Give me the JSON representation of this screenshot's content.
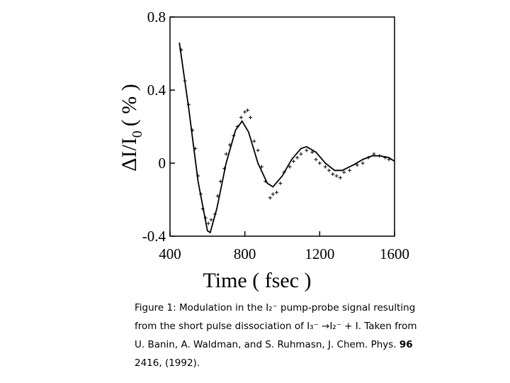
{
  "chart_data": {
    "type": "line",
    "x_label": "Time ( fsec )",
    "y_label": {
      "main": "ΔI/I",
      "sub": "0",
      "unit": "( % )"
    },
    "xlim": [
      400,
      1600
    ],
    "xticks": [
      400,
      800,
      1200,
      1600
    ],
    "ylim": [
      -0.4,
      0.8
    ],
    "yticks": [
      -0.4,
      0,
      0.4,
      0.8
    ],
    "series": [
      {
        "style": "line",
        "color": "#000000",
        "x": [
          450,
          500,
          550,
          600,
          615,
          650,
          700,
          750,
          785,
          820,
          870,
          920,
          950,
          1000,
          1050,
          1100,
          1130,
          1180,
          1230,
          1280,
          1320,
          1380,
          1430,
          1480,
          1520,
          1570,
          1600
        ],
        "values": [
          0.66,
          0.3,
          -0.1,
          -0.37,
          -0.38,
          -0.25,
          0.0,
          0.18,
          0.23,
          0.17,
          0.0,
          -0.11,
          -0.13,
          -0.07,
          0.02,
          0.08,
          0.09,
          0.06,
          0.0,
          -0.04,
          -0.04,
          -0.01,
          0.02,
          0.04,
          0.04,
          0.03,
          0.01
        ]
      },
      {
        "style": "plus",
        "color": "#000000",
        "x": [
          460,
          480,
          500,
          520,
          535,
          550,
          565,
          575,
          590,
          605,
          620,
          640,
          655,
          670,
          690,
          700,
          720,
          740,
          760,
          780,
          800,
          815,
          830,
          850,
          870,
          890,
          910,
          935,
          950,
          970,
          990,
          1010,
          1040,
          1060,
          1080,
          1100,
          1130,
          1160,
          1180,
          1200,
          1230,
          1250,
          1270,
          1290,
          1310,
          1330,
          1360,
          1400,
          1430,
          1460,
          1490,
          1520,
          1550,
          1570
        ],
        "values": [
          0.62,
          0.45,
          0.32,
          0.18,
          0.08,
          -0.07,
          -0.17,
          -0.25,
          -0.3,
          -0.33,
          -0.31,
          -0.28,
          -0.18,
          -0.1,
          -0.03,
          0.05,
          0.1,
          0.15,
          0.2,
          0.25,
          0.28,
          0.29,
          0.25,
          0.12,
          0.07,
          -0.02,
          -0.1,
          -0.19,
          -0.17,
          -0.16,
          -0.11,
          -0.05,
          -0.02,
          0.01,
          0.03,
          0.05,
          0.07,
          0.06,
          0.02,
          0.0,
          -0.02,
          -0.04,
          -0.06,
          -0.07,
          -0.08,
          -0.05,
          -0.04,
          -0.01,
          0.0,
          0.03,
          0.05,
          0.04,
          0.03,
          0.02
        ]
      }
    ]
  },
  "caption": {
    "lines": [
      [
        "Figure 1:  Modulation in the I₂⁻ pump-probe signal resulting"
      ],
      [
        "from the short pulse dissociation of I₃⁻ →I₂⁻ + I.  Taken from"
      ],
      [
        "U. Banin, A. Waldman, and S. Ruhmasn, J. Chem. Phys. ",
        "96"
      ],
      [
        "2416, (1992)."
      ]
    ]
  }
}
